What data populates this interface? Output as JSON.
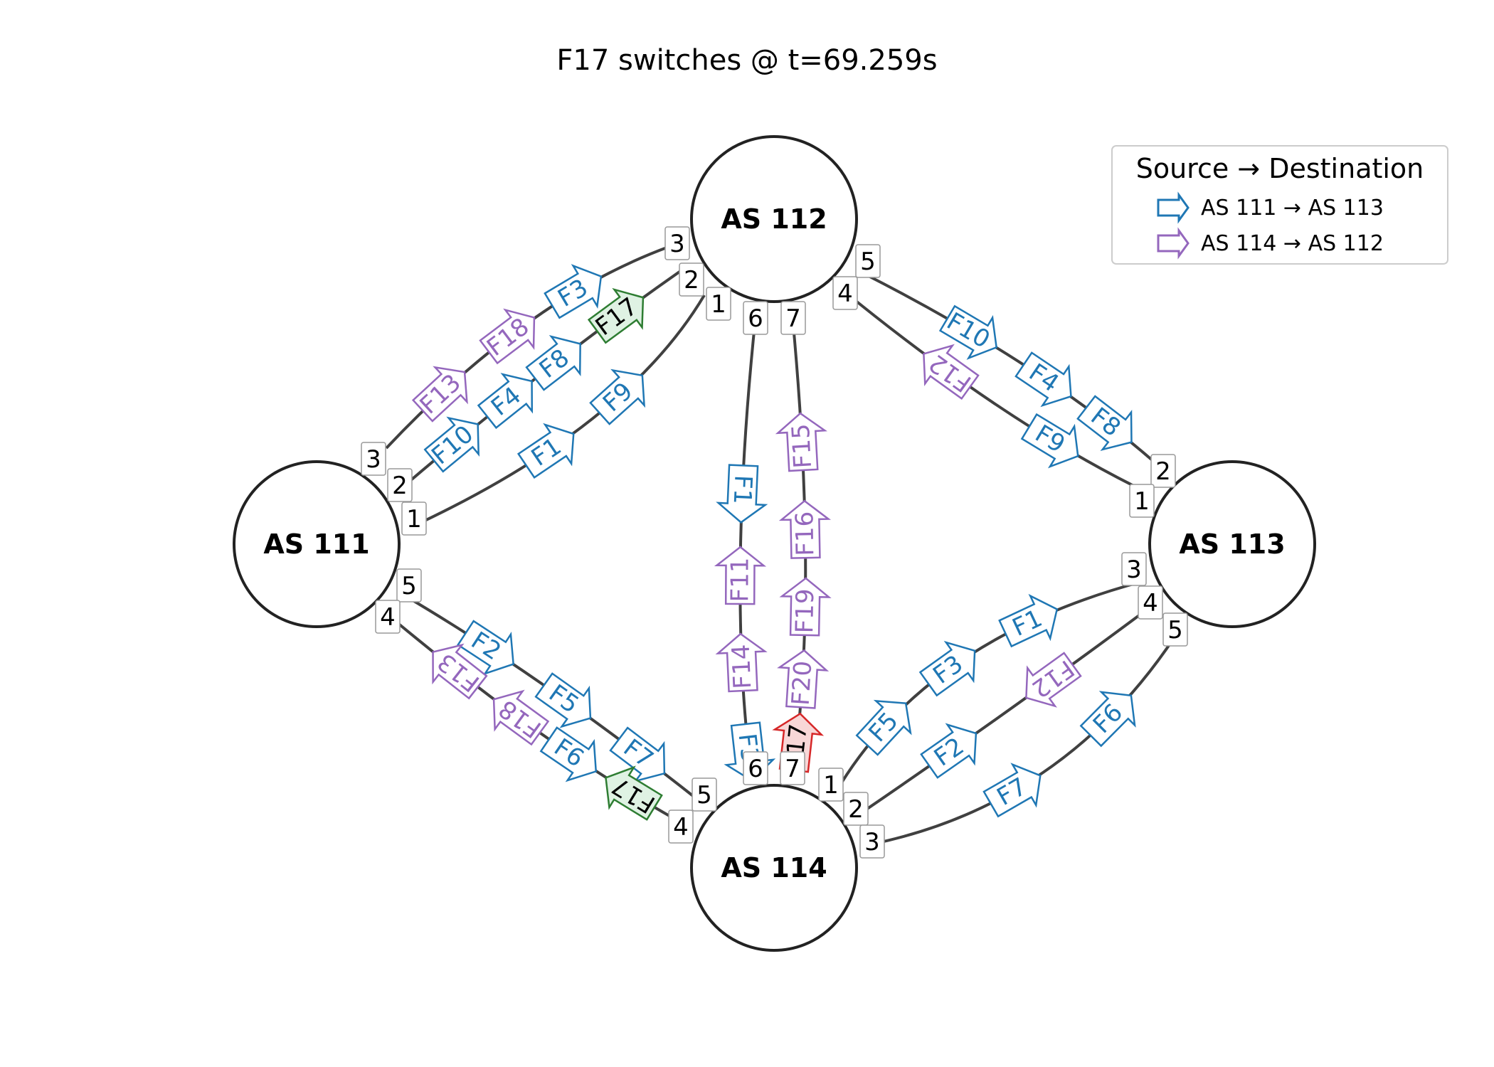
{
  "title": "F17 switches @ t=69.259s",
  "colors": {
    "edge": "#404040",
    "node_stroke": "#222222",
    "series_a": "#1f77b4",
    "series_b": "#9467bd",
    "highlight_new": "#2e7d32",
    "highlight_new_fill": "#dff2e3",
    "highlight_old": "#d62728",
    "highlight_old_fill": "#f8d7d7"
  },
  "legend": {
    "title": "Source → Destination",
    "items": [
      {
        "label": "AS 111 → AS 113",
        "color": "#1f77b4"
      },
      {
        "label": "AS 114 → AS 112",
        "color": "#9467bd"
      }
    ]
  },
  "nodes": [
    {
      "id": "n111",
      "label": "AS 111"
    },
    {
      "id": "n112",
      "label": "AS 112"
    },
    {
      "id": "n113",
      "label": "AS 113"
    },
    {
      "id": "n114",
      "label": "AS 114"
    }
  ],
  "links": [
    {
      "id": "a3",
      "from": "n111",
      "from_port": "3",
      "to": "n112",
      "to_port": "3"
    },
    {
      "id": "a2",
      "from": "n111",
      "from_port": "2",
      "to": "n112",
      "to_port": "2"
    },
    {
      "id": "a1",
      "from": "n111",
      "from_port": "1",
      "to": "n112",
      "to_port": "1"
    },
    {
      "id": "b5",
      "from": "n112",
      "from_port": "5",
      "to": "n113",
      "to_port": "2"
    },
    {
      "id": "b4",
      "from": "n112",
      "from_port": "4",
      "to": "n113",
      "to_port": "1"
    },
    {
      "id": "c6",
      "from": "n112",
      "from_port": "6",
      "to": "n114",
      "to_port": "6"
    },
    {
      "id": "c7",
      "from": "n112",
      "from_port": "7",
      "to": "n114",
      "to_port": "7"
    },
    {
      "id": "d5",
      "from": "n111",
      "from_port": "5",
      "to": "n114",
      "to_port": "5"
    },
    {
      "id": "d4",
      "from": "n111",
      "from_port": "4",
      "to": "n114",
      "to_port": "4"
    },
    {
      "id": "e1",
      "from": "n114",
      "from_port": "1",
      "to": "n113",
      "to_port": "3"
    },
    {
      "id": "e2",
      "from": "n114",
      "from_port": "2",
      "to": "n113",
      "to_port": "4"
    },
    {
      "id": "e3",
      "from": "n114",
      "from_port": "3",
      "to": "n113",
      "to_port": "5"
    }
  ],
  "flows": [
    {
      "label": "F3",
      "link": "a3",
      "t": 0.67,
      "dir": "fwd",
      "series": "a"
    },
    {
      "label": "F18",
      "link": "a3",
      "t": 0.44,
      "dir": "fwd",
      "series": "b"
    },
    {
      "label": "F13",
      "link": "a3",
      "t": 0.2,
      "dir": "fwd",
      "series": "b"
    },
    {
      "label": "F17",
      "link": "a2",
      "t": 0.78,
      "dir": "fwd",
      "series": "new"
    },
    {
      "label": "F8",
      "link": "a2",
      "t": 0.56,
      "dir": "fwd",
      "series": "a"
    },
    {
      "label": "F4",
      "link": "a2",
      "t": 0.39,
      "dir": "fwd",
      "series": "a"
    },
    {
      "label": "F10",
      "link": "a2",
      "t": 0.2,
      "dir": "fwd",
      "series": "a"
    },
    {
      "label": "F9",
      "link": "a1",
      "t": 0.6,
      "dir": "fwd",
      "series": "a"
    },
    {
      "label": "F1",
      "link": "a1",
      "t": 0.36,
      "dir": "fwd",
      "series": "a"
    },
    {
      "label": "F10",
      "link": "b5",
      "t": 0.3,
      "dir": "fwd",
      "series": "a"
    },
    {
      "label": "F4",
      "link": "b5",
      "t": 0.54,
      "dir": "fwd",
      "series": "a"
    },
    {
      "label": "F8",
      "link": "b5",
      "t": 0.76,
      "dir": "fwd",
      "series": "a"
    },
    {
      "label": "F12",
      "link": "b4",
      "t": 0.32,
      "dir": "rev",
      "series": "b"
    },
    {
      "label": "F9",
      "link": "b4",
      "t": 0.66,
      "dir": "fwd",
      "series": "a"
    },
    {
      "label": "F1",
      "link": "c6",
      "t": 0.34,
      "dir": "fwd",
      "series": "a"
    },
    {
      "label": "F11",
      "link": "c6",
      "t": 0.52,
      "dir": "rev",
      "series": "b"
    },
    {
      "label": "F14",
      "link": "c6",
      "t": 0.72,
      "dir": "rev",
      "series": "b"
    },
    {
      "label": "F3",
      "link": "c6",
      "t": 0.94,
      "dir": "fwd",
      "series": "a"
    },
    {
      "label": "F15",
      "link": "c7",
      "t": 0.24,
      "dir": "rev",
      "series": "b"
    },
    {
      "label": "F16",
      "link": "c7",
      "t": 0.42,
      "dir": "rev",
      "series": "b"
    },
    {
      "label": "F19",
      "link": "c7",
      "t": 0.59,
      "dir": "rev",
      "series": "b"
    },
    {
      "label": "F20",
      "link": "c7",
      "t": 0.76,
      "dir": "rev",
      "series": "b"
    },
    {
      "label": "F17",
      "link": "c7",
      "t": 0.92,
      "dir": "rev",
      "series": "old"
    },
    {
      "label": "F2",
      "link": "d5",
      "t": 0.3,
      "dir": "fwd",
      "series": "a"
    },
    {
      "label": "F5",
      "link": "d5",
      "t": 0.57,
      "dir": "fwd",
      "series": "a"
    },
    {
      "label": "F7",
      "link": "d5",
      "t": 0.82,
      "dir": "fwd",
      "series": "a"
    },
    {
      "label": "F13",
      "link": "d4",
      "t": 0.2,
      "dir": "rev",
      "series": "b"
    },
    {
      "label": "F18",
      "link": "d4",
      "t": 0.4,
      "dir": "rev",
      "series": "b"
    },
    {
      "label": "F6",
      "link": "d4",
      "t": 0.58,
      "dir": "fwd",
      "series": "a"
    },
    {
      "label": "F17",
      "link": "d4",
      "t": 0.79,
      "dir": "rev",
      "series": "new"
    },
    {
      "label": "F5",
      "link": "e1",
      "t": 0.24,
      "dir": "fwd",
      "series": "a"
    },
    {
      "label": "F3",
      "link": "e1",
      "t": 0.48,
      "dir": "fwd",
      "series": "a"
    },
    {
      "label": "F1",
      "link": "e1",
      "t": 0.72,
      "dir": "fwd",
      "series": "a"
    },
    {
      "label": "F2",
      "link": "e2",
      "t": 0.32,
      "dir": "fwd",
      "series": "a"
    },
    {
      "label": "F12",
      "link": "e2",
      "t": 0.66,
      "dir": "rev",
      "series": "b"
    },
    {
      "label": "F7",
      "link": "e3",
      "t": 0.4,
      "dir": "fwd",
      "series": "a"
    },
    {
      "label": "F6",
      "link": "e3",
      "t": 0.72,
      "dir": "fwd",
      "series": "a"
    }
  ]
}
